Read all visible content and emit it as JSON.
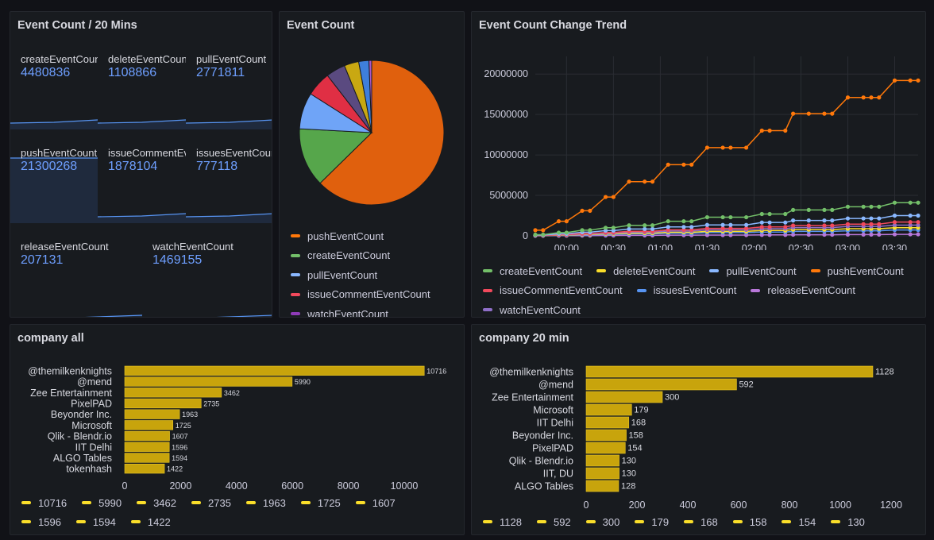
{
  "panels": {
    "stats": {
      "title": "Event Count / 20 Mins",
      "items": [
        {
          "label": "createEventCount",
          "value": "4480836"
        },
        {
          "label": "deleteEventCount",
          "value": "1108866"
        },
        {
          "label": "pullEventCount",
          "value": "2771811"
        },
        {
          "label": "pushEventCount",
          "value": "21300268"
        },
        {
          "label": "issueCommentEventCount",
          "value": "1878104"
        },
        {
          "label": "issuesEventCount",
          "value": "777118"
        },
        {
          "label": "releaseEventCount",
          "value": "207131"
        },
        {
          "label": "watchEventCount",
          "value": "1469155"
        }
      ]
    },
    "pie": {
      "title": "Event Count",
      "legend": [
        {
          "name": "pushEventCount",
          "color": "#ff780a"
        },
        {
          "name": "createEventCount",
          "color": "#73bf69"
        },
        {
          "name": "pullEventCount",
          "color": "#8ab8ff"
        },
        {
          "name": "issueCommentEventCount",
          "color": "#f2495c"
        },
        {
          "name": "watchEventCount",
          "color": "#8f3bb8"
        }
      ]
    },
    "trend": {
      "title": "Event Count Change Trend",
      "legend": [
        {
          "name": "createEventCount",
          "color": "#73bf69"
        },
        {
          "name": "deleteEventCount",
          "color": "#fade2a"
        },
        {
          "name": "pullEventCount",
          "color": "#8ab8ff"
        },
        {
          "name": "pushEventCount",
          "color": "#ff780a"
        },
        {
          "name": "issueCommentEventCount",
          "color": "#f2495c"
        },
        {
          "name": "issuesEventCount",
          "color": "#5794f2"
        },
        {
          "name": "releaseEventCount",
          "color": "#b877d9"
        },
        {
          "name": "watchEventCount",
          "color": "#8f6fc8"
        }
      ]
    },
    "company_all": {
      "title": "company all"
    },
    "company_20": {
      "title": "company 20 min"
    }
  },
  "chart_data": [
    {
      "type": "pie",
      "title": "Event Count",
      "slices": [
        {
          "name": "pushEventCount",
          "value": 21300268,
          "color": "#e0600d"
        },
        {
          "name": "createEventCount",
          "value": 4480836,
          "color": "#56a64b"
        },
        {
          "name": "pullEventCount",
          "value": 2771811,
          "color": "#6fa4f7"
        },
        {
          "name": "issueCommentEventCount",
          "value": 1878104,
          "color": "#e02f44"
        },
        {
          "name": "watchEventCount",
          "value": 1469155,
          "color": "#5a4a80"
        },
        {
          "name": "deleteEventCount",
          "value": 1108866,
          "color": "#c9a812"
        },
        {
          "name": "issuesEventCount",
          "value": 777118,
          "color": "#3e7fdb"
        },
        {
          "name": "releaseEventCount",
          "value": 207131,
          "color": "#a855c8"
        }
      ]
    },
    {
      "type": "line",
      "title": "Event Count Change Trend",
      "x_ticks": [
        "00:00",
        "00:30",
        "01:00",
        "01:30",
        "02:00",
        "02:30",
        "03:00",
        "03:30"
      ],
      "x": [
        -20,
        -15,
        -5,
        0,
        10,
        15,
        25,
        30,
        40,
        50,
        55,
        65,
        75,
        80,
        90,
        100,
        105,
        115,
        125,
        130,
        140,
        145,
        155,
        165,
        170,
        180,
        190,
        195,
        200,
        210,
        220,
        225
      ],
      "ylim": [
        0,
        21000000
      ],
      "y_ticks": [
        "0",
        "5000000",
        "10000000",
        "15000000",
        "20000000"
      ],
      "series": [
        {
          "name": "pushEventCount",
          "color": "#ff780a",
          "values": [
            700000,
            700000,
            1800000,
            1800000,
            3100000,
            3100000,
            4800000,
            4800000,
            6700000,
            6700000,
            6700000,
            8800000,
            8800000,
            8800000,
            10900000,
            10900000,
            10900000,
            10900000,
            13000000,
            13000000,
            13000000,
            15100000,
            15100000,
            15100000,
            15100000,
            17100000,
            17100000,
            17100000,
            17100000,
            19200000,
            19200000,
            19200000
          ]
        },
        {
          "name": "createEventCount",
          "color": "#73bf69",
          "values": [
            150000,
            150000,
            400000,
            400000,
            700000,
            700000,
            1000000,
            1000000,
            1300000,
            1300000,
            1300000,
            1800000,
            1800000,
            1800000,
            2300000,
            2300000,
            2300000,
            2300000,
            2700000,
            2700000,
            2700000,
            3200000,
            3200000,
            3200000,
            3200000,
            3600000,
            3600000,
            3600000,
            3600000,
            4100000,
            4100000,
            4100000
          ]
        },
        {
          "name": "pullEventCount",
          "color": "#8ab8ff",
          "values": [
            100000,
            100000,
            250000,
            250000,
            450000,
            450000,
            650000,
            650000,
            850000,
            850000,
            850000,
            1100000,
            1100000,
            1100000,
            1350000,
            1350000,
            1350000,
            1350000,
            1650000,
            1650000,
            1650000,
            1900000,
            1900000,
            1900000,
            1900000,
            2150000,
            2150000,
            2150000,
            2150000,
            2500000,
            2500000,
            2500000
          ]
        },
        {
          "name": "issueCommentEventCount",
          "color": "#f2495c",
          "values": [
            60000,
            60000,
            150000,
            150000,
            280000,
            280000,
            420000,
            420000,
            560000,
            560000,
            560000,
            750000,
            750000,
            750000,
            920000,
            920000,
            920000,
            920000,
            1100000,
            1100000,
            1100000,
            1280000,
            1280000,
            1280000,
            1280000,
            1450000,
            1450000,
            1450000,
            1450000,
            1700000,
            1700000,
            1700000
          ]
        },
        {
          "name": "watchEventCount",
          "color": "#8f6fc8",
          "values": [
            50000,
            50000,
            120000,
            120000,
            220000,
            220000,
            330000,
            330000,
            450000,
            450000,
            450000,
            600000,
            600000,
            600000,
            730000,
            730000,
            730000,
            730000,
            880000,
            880000,
            880000,
            1020000,
            1020000,
            1020000,
            1020000,
            1170000,
            1170000,
            1170000,
            1170000,
            1330000,
            1330000,
            1330000
          ]
        },
        {
          "name": "deleteEventCount",
          "color": "#fade2a",
          "values": [
            40000,
            40000,
            90000,
            90000,
            170000,
            170000,
            250000,
            250000,
            330000,
            330000,
            330000,
            440000,
            440000,
            440000,
            550000,
            550000,
            550000,
            550000,
            660000,
            660000,
            660000,
            770000,
            770000,
            770000,
            770000,
            880000,
            880000,
            880000,
            880000,
            1000000,
            1000000,
            1000000
          ]
        },
        {
          "name": "issuesEventCount",
          "color": "#5794f2",
          "values": [
            30000,
            30000,
            60000,
            60000,
            120000,
            120000,
            180000,
            180000,
            240000,
            240000,
            240000,
            320000,
            320000,
            320000,
            400000,
            400000,
            400000,
            400000,
            470000,
            470000,
            470000,
            550000,
            550000,
            550000,
            550000,
            630000,
            630000,
            630000,
            630000,
            720000,
            720000,
            720000
          ]
        },
        {
          "name": "releaseEventCount",
          "color": "#b877d9",
          "values": [
            10000,
            10000,
            20000,
            20000,
            30000,
            30000,
            50000,
            50000,
            60000,
            60000,
            60000,
            80000,
            80000,
            80000,
            100000,
            100000,
            100000,
            100000,
            120000,
            120000,
            120000,
            140000,
            140000,
            140000,
            140000,
            160000,
            160000,
            160000,
            160000,
            190000,
            190000,
            190000
          ]
        }
      ]
    },
    {
      "type": "bar",
      "orientation": "horizontal",
      "title": "company all",
      "categories": [
        "@themilkenknights",
        "@mend",
        "Zee Entertainment",
        "PixelPAD",
        "Beyonder Inc.",
        "Microsoft",
        "Qlik - Blendr.io",
        "IIT Delhi",
        "ALGO Tables",
        "tokenhash"
      ],
      "values": [
        10716,
        5990,
        3462,
        2735,
        1963,
        1725,
        1607,
        1596,
        1594,
        1422
      ],
      "value_labels": [
        "10716",
        "5990",
        "3462",
        "2735",
        "1963",
        "1725",
        "1607",
        "1596",
        "1594",
        "1422"
      ],
      "xlim": [
        0,
        10716
      ],
      "x_ticks": [
        "0",
        "2000",
        "4000",
        "6000",
        "8000",
        "10000"
      ],
      "color": "#c8a40c"
    },
    {
      "type": "bar",
      "orientation": "horizontal",
      "title": "company 20 min",
      "categories": [
        "@themilkenknights",
        "@mend",
        "Zee Entertainment",
        "Microsoft",
        "IIT Delhi",
        "Beyonder Inc.",
        "PixelPAD",
        "Qlik - Blendr.io",
        "IIT, DU",
        "ALGO Tables"
      ],
      "values": [
        1128,
        592,
        300,
        179,
        168,
        158,
        154,
        130,
        130,
        128
      ],
      "value_labels": [
        "1128",
        "592",
        "300",
        "179",
        "168",
        "158",
        "154",
        "130",
        "130",
        "128"
      ],
      "xlim": [
        0,
        1128
      ],
      "x_ticks": [
        "0",
        "200",
        "400",
        "600",
        "800",
        "1000",
        "1200"
      ],
      "color": "#c8a40c"
    }
  ]
}
